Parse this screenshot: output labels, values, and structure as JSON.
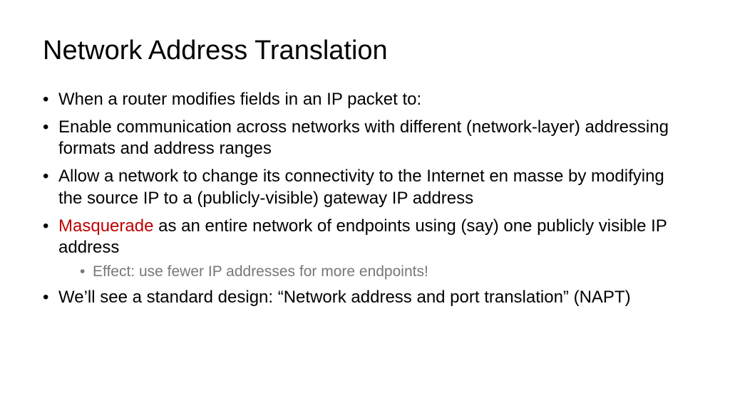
{
  "title": {
    "text": "Network Address Translation",
    "fontsize": 38,
    "color": "#000000"
  },
  "body_fontsize": 24,
  "body_color": "#000000",
  "highlight_color": "#c00000",
  "sub_color": "#777777",
  "sub_fontsize": 21,
  "bullets": [
    {
      "text": "When a router modifies fields in an IP packet to:"
    },
    {
      "text": "Enable communication across networks with different (network-layer) addressing formats and address ranges"
    },
    {
      "text": "Allow a network to change its connectivity to the Internet en masse by modifying the source IP to a (publicly-visible) gateway IP address"
    },
    {
      "highlight": "Masquerade",
      "text": " as an entire network of endpoints using (say) one publicly visible IP address",
      "sub": [
        "Effect: use fewer IP addresses for more endpoints!"
      ]
    },
    {
      "text": "We’ll see a standard design: “Network address and port translation” (NAPT)"
    }
  ]
}
